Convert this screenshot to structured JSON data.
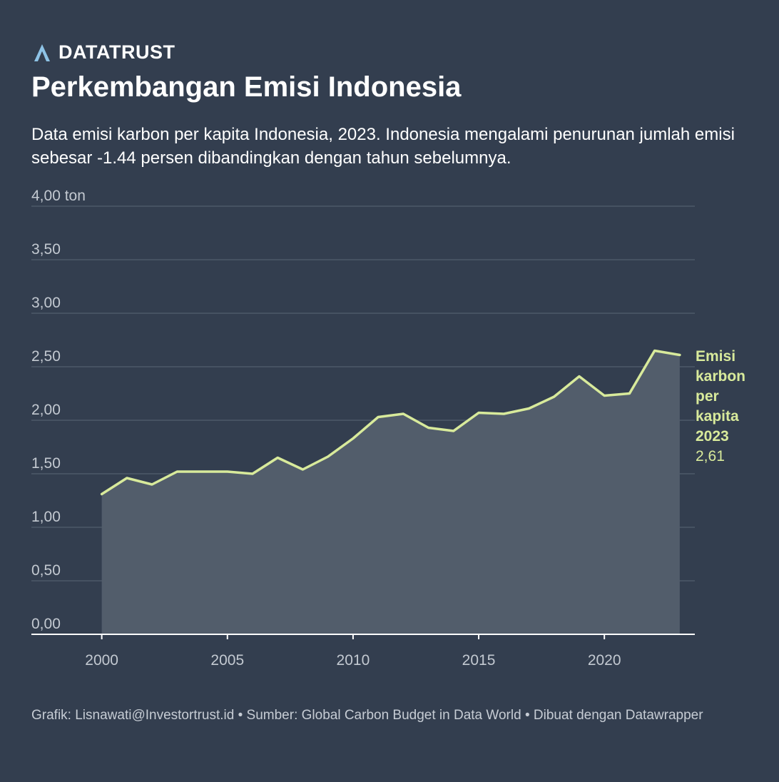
{
  "brand": {
    "name": "DATATRUST",
    "icon": "datatrust-logo-icon",
    "icon_color": "#8ec3e6"
  },
  "header": {
    "title": "Perkembangan Emisi Indonesia",
    "subtitle": "Data emisi karbon per kapita Indonesia, 2023. Indonesia mengalami penurunan jumlah emisi sebesar -1.44 persen dibandingkan dengan tahun sebelumnya."
  },
  "chart_data": {
    "type": "area",
    "title": "Perkembangan Emisi Indonesia",
    "xlabel": "",
    "ylabel": "ton",
    "x": [
      2000,
      2001,
      2002,
      2003,
      2004,
      2005,
      2006,
      2007,
      2008,
      2009,
      2010,
      2011,
      2012,
      2013,
      2014,
      2015,
      2016,
      2017,
      2018,
      2019,
      2020,
      2021,
      2022,
      2023
    ],
    "series": [
      {
        "name": "Emisi karbon per kapita",
        "values": [
          1.31,
          1.46,
          1.4,
          1.52,
          1.52,
          1.52,
          1.5,
          1.65,
          1.54,
          1.66,
          1.83,
          2.03,
          2.06,
          1.93,
          1.9,
          2.07,
          2.06,
          2.11,
          2.22,
          2.41,
          2.23,
          2.25,
          2.65,
          2.61
        ]
      }
    ],
    "xlim": [
      1997.2,
      2023.6
    ],
    "ylim": [
      0,
      4
    ],
    "y_ticks": [
      0,
      0.5,
      1,
      1.5,
      2,
      2.5,
      3,
      3.5,
      4
    ],
    "y_tick_labels": [
      "0,00",
      "0,50",
      "1,00",
      "1,50",
      "2,00",
      "2,50",
      "3,00",
      "3,50",
      "4,00 ton"
    ],
    "x_ticks": [
      2000,
      2005,
      2010,
      2015,
      2020
    ],
    "x_tick_labels": [
      "2000",
      "2005",
      "2010",
      "2015",
      "2020"
    ],
    "grid": true,
    "annotation": {
      "label_lines": [
        "Emisi",
        "karbon",
        "per",
        "kapita",
        "2023"
      ],
      "value": "2,61"
    },
    "colors": {
      "line": "#d8ea9b",
      "area": "#525d6b",
      "grid": "#4d5868",
      "axis": "#ffffff",
      "tick_text": "#c3c9d1",
      "annotation": "#d8ea9b"
    }
  },
  "footer": {
    "credit": "Grafik: Lisnawati@Investortrust.id • Sumber: Global Carbon Budget in Data World • Dibuat dengan Datawrapper"
  }
}
